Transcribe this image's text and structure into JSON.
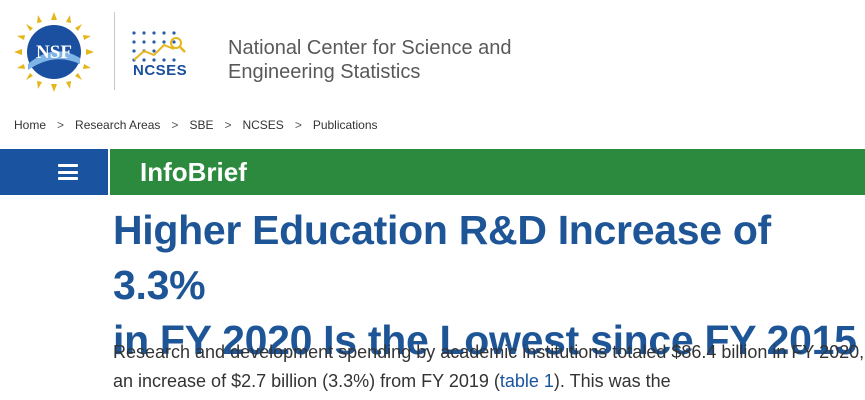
{
  "header": {
    "nsf_logo_text": "NSF",
    "ncses_logo_text": "NCSES",
    "org_name_line1": "National Center for Science and",
    "org_name_line2": "Engineering Statistics"
  },
  "breadcrumb": {
    "items": [
      "Home",
      "Research Areas",
      "SBE",
      "NCSES",
      "Publications"
    ],
    "separator": ">"
  },
  "nav": {
    "section_label": "InfoBrief",
    "menu_icon": "hamburger-menu-icon"
  },
  "article": {
    "title_line1": "Higher Education R&D Increase of 3.3%",
    "title_line2": "in FY 2020 Is the Lowest since FY 2015",
    "para_part1": "Research and development spending by academic institutions totaled $86.4 billion in FY 2020, an increase of $2.7 billion (3.3%) from FY 2019 (",
    "para_link": "table 1",
    "para_part2": "). This was the"
  },
  "colors": {
    "title_blue": "#1d5596",
    "nav_blue": "#1a54a0",
    "nav_green": "#2c8a3e",
    "nsf_gold": "#e6b619"
  }
}
